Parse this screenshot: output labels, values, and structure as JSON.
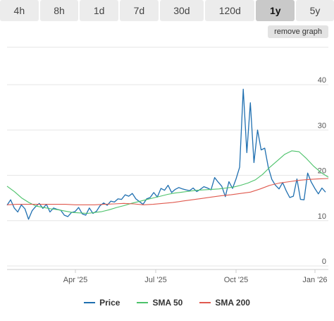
{
  "tabs": [
    {
      "label": "4h",
      "active": false
    },
    {
      "label": "8h",
      "active": false
    },
    {
      "label": "1d",
      "active": false
    },
    {
      "label": "7d",
      "active": false
    },
    {
      "label": "30d",
      "active": false
    },
    {
      "label": "120d",
      "active": false
    },
    {
      "label": "1y",
      "active": true
    },
    {
      "label": "5y",
      "active": false
    }
  ],
  "remove_label": "remove graph",
  "legend": [
    {
      "label": "Price",
      "color": "#1f6fb0"
    },
    {
      "label": "SMA 50",
      "color": "#4cc26a"
    },
    {
      "label": "SMA 200",
      "color": "#e05a4f"
    }
  ],
  "chart_data": {
    "type": "line",
    "x_ticks": [
      "Apr '25",
      "Jul '25",
      "Oct '25",
      "Jan '26"
    ],
    "y_ticks": [
      0,
      10,
      20,
      30,
      40
    ],
    "ylim": [
      0,
      43
    ],
    "grid": true,
    "legend_position": "bottom",
    "series": [
      {
        "name": "Price",
        "color": "#1f6fb0",
        "values": [
          13.4,
          14.6,
          12.8,
          11.9,
          13.5,
          12.6,
          10.3,
          12.2,
          13.1,
          13.8,
          12.7,
          13.6,
          11.9,
          12.8,
          12.5,
          12.3,
          11.2,
          10.9,
          11.8,
          12.0,
          12.9,
          11.5,
          11.2,
          12.8,
          11.6,
          12.1,
          13.3,
          13.9,
          13.4,
          14.3,
          14.1,
          14.8,
          14.7,
          15.7,
          15.4,
          16.0,
          14.8,
          14.2,
          13.6,
          14.8,
          15.1,
          16.2,
          15.2,
          17.1,
          16.7,
          17.8,
          16.2,
          16.9,
          17.3,
          17.0,
          16.8,
          16.6,
          17.2,
          16.4,
          16.9,
          17.5,
          17.2,
          16.8,
          19.5,
          18.5,
          17.6,
          15.3,
          18.6,
          17.1,
          19.2,
          21.8,
          39.0,
          25.0,
          36.0,
          22.8,
          30.0,
          25.6,
          26.0,
          21.8,
          19.1,
          17.8,
          17.0,
          18.4,
          16.6,
          15.1,
          15.4,
          19.2,
          14.7,
          14.6,
          20.5,
          18.5,
          17.1,
          15.9,
          17.2,
          16.3
        ],
        "note": "values sampled evenly across the year"
      },
      {
        "name": "SMA 50",
        "color": "#4cc26a",
        "values": [
          17.6,
          16.4,
          15.0,
          14.0,
          13.2,
          12.9,
          12.6,
          12.4,
          12.1,
          11.8,
          11.7,
          11.6,
          11.8,
          12.0,
          12.4,
          12.9,
          13.3,
          13.8,
          14.2,
          14.6,
          15.0,
          15.4,
          15.8,
          16.1,
          16.3,
          16.5,
          16.7,
          16.8,
          16.9,
          17.0,
          17.2,
          17.4,
          17.8,
          18.3,
          19.0,
          20.2,
          21.8,
          23.2,
          24.6,
          25.4,
          25.2,
          23.7,
          22.0,
          20.6,
          19.6
        ]
      },
      {
        "name": "SMA 200",
        "color": "#e05a4f",
        "values": [
          13.5,
          13.6,
          13.6,
          13.6,
          13.6,
          13.6,
          13.6,
          13.5,
          13.5,
          13.5,
          13.6,
          13.7,
          13.8,
          13.7,
          13.5,
          13.6,
          13.8,
          14.0,
          14.3,
          14.6,
          14.9,
          15.2,
          15.5,
          15.7,
          16.0,
          16.3,
          17.0,
          17.8,
          18.3,
          18.6,
          18.9,
          19.1,
          19.2,
          19.3
        ]
      }
    ]
  }
}
